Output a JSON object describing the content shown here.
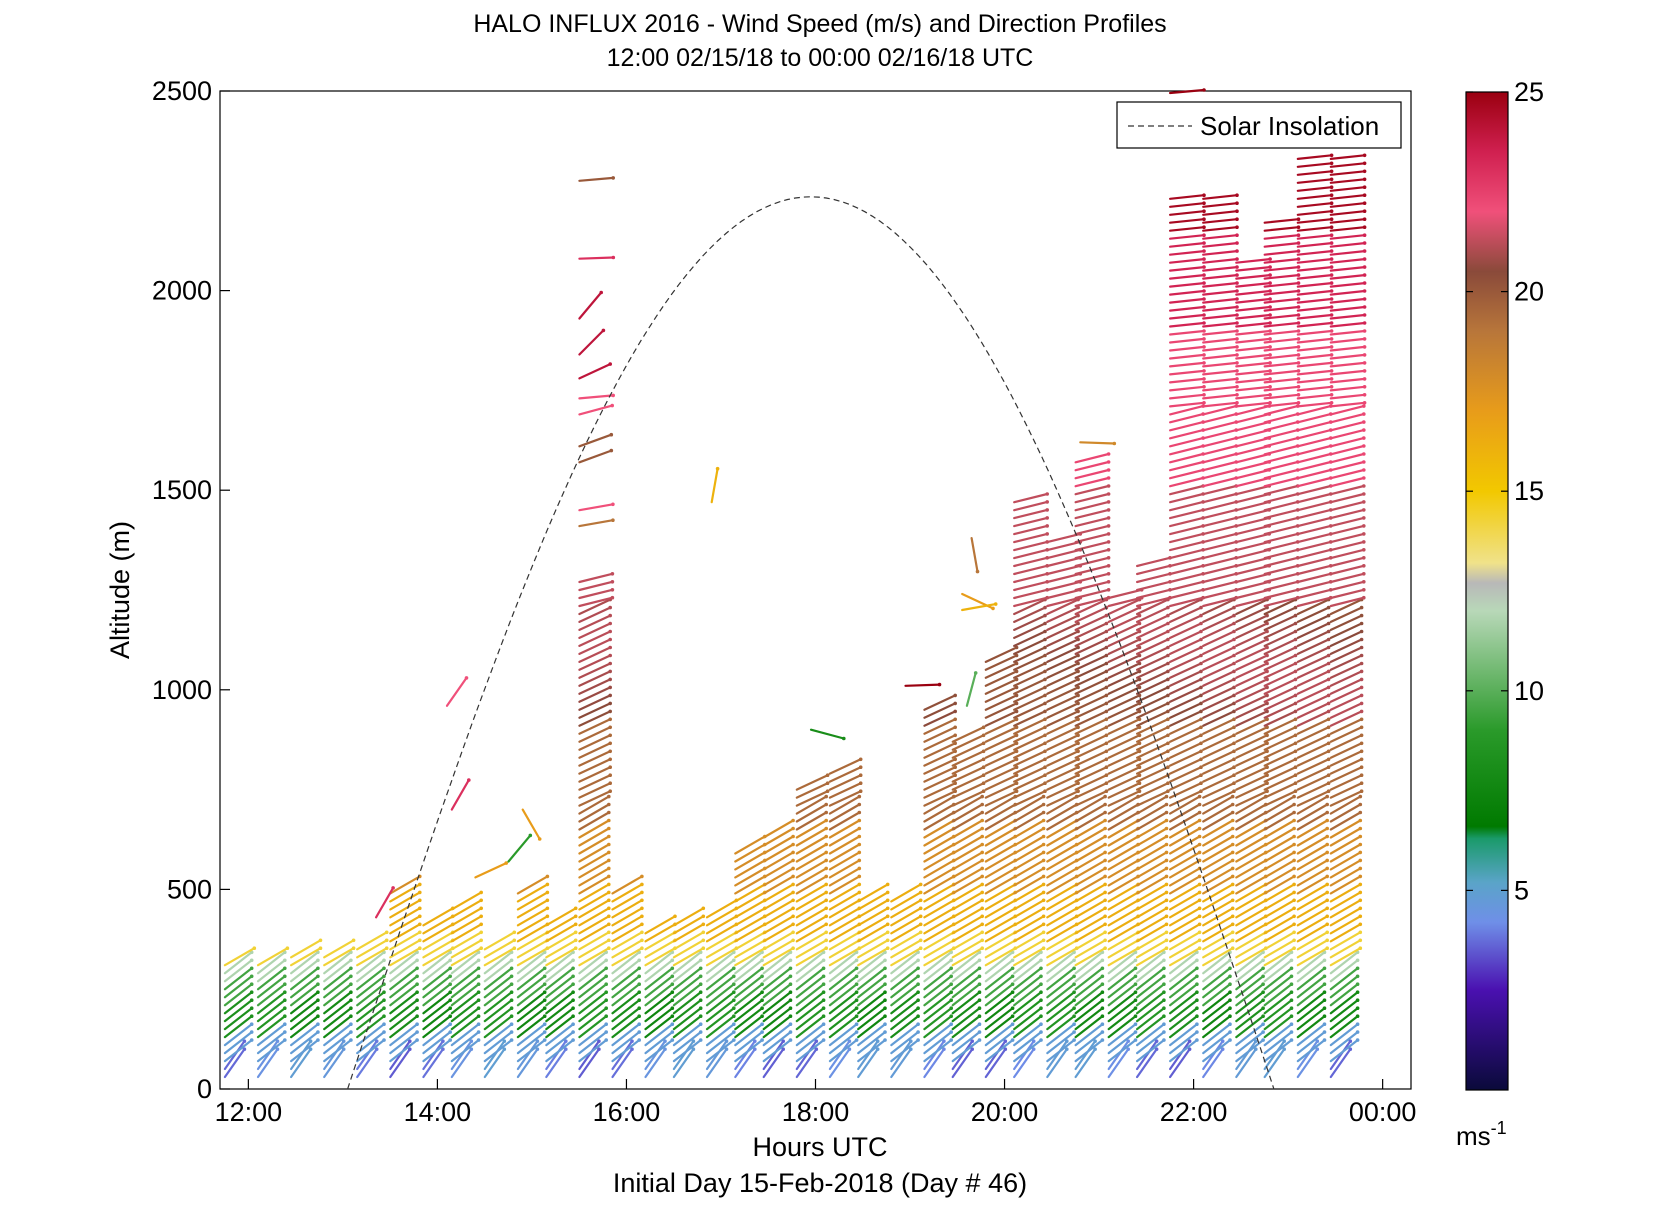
{
  "chart_data": {
    "type": "wind-barb-profile",
    "title": "HALO INFLUX 2016 - Wind Speed (m/s) and Direction Profiles",
    "subtitle": "12:00 02/15/18 to 00:00 02/16/18  UTC",
    "xlabel": "Hours UTC",
    "xlabel_secondary": "Initial Day 15-Feb-2018 (Day # 46)",
    "ylabel": "Altitude (m)",
    "xlim": [
      11.7,
      24.3
    ],
    "ylim": [
      0,
      2500
    ],
    "x_ticks": [
      {
        "value": 12,
        "label": "12:00"
      },
      {
        "value": 14,
        "label": "14:00"
      },
      {
        "value": 16,
        "label": "16:00"
      },
      {
        "value": 18,
        "label": "18:00"
      },
      {
        "value": 20,
        "label": "20:00"
      },
      {
        "value": 22,
        "label": "22:00"
      },
      {
        "value": 24,
        "label": "00:00"
      }
    ],
    "y_ticks": [
      {
        "value": 0,
        "label": "0"
      },
      {
        "value": 500,
        "label": "500"
      },
      {
        "value": 1000,
        "label": "1000"
      },
      {
        "value": 1500,
        "label": "1500"
      },
      {
        "value": 2000,
        "label": "2000"
      },
      {
        "value": 2500,
        "label": "2500"
      }
    ],
    "legend": {
      "label": "Solar Insolation",
      "position": "top-right",
      "line_style": "dashed",
      "color": "#000000"
    },
    "solar_insolation": {
      "start_hour": 13.05,
      "peak_hour": 17.95,
      "end_hour": 22.85,
      "peak_altitude": 2235
    },
    "colorbar": {
      "ticks": [
        {
          "value": 5,
          "label": "5"
        },
        {
          "value": 10,
          "label": "10"
        },
        {
          "value": 15,
          "label": "15"
        },
        {
          "value": 20,
          "label": "20"
        },
        {
          "value": 25,
          "label": "25"
        }
      ],
      "unit_base": "ms",
      "unit_exp": "-1",
      "range": [
        0,
        25
      ],
      "stops": [
        {
          "v": 0,
          "c": "#0a0a3a"
        },
        {
          "v": 2.5,
          "c": "#4a10b0"
        },
        {
          "v": 4.2,
          "c": "#6f8fe8"
        },
        {
          "v": 5.2,
          "c": "#5aa4c8"
        },
        {
          "v": 6.3,
          "c": "#1a9a6a"
        },
        {
          "v": 6.6,
          "c": "#007a00"
        },
        {
          "v": 9,
          "c": "#2a9a2a"
        },
        {
          "v": 12,
          "c": "#b8d8b8"
        },
        {
          "v": 12.7,
          "c": "#b8b8b8"
        },
        {
          "v": 13.2,
          "c": "#f0e28a"
        },
        {
          "v": 15,
          "c": "#f2c800"
        },
        {
          "v": 17,
          "c": "#e89c1a"
        },
        {
          "v": 19,
          "c": "#b8763a"
        },
        {
          "v": 20.5,
          "c": "#8a4a3a"
        },
        {
          "v": 22,
          "c": "#f0507a"
        },
        {
          "v": 23.5,
          "c": "#d02050"
        },
        {
          "v": 25,
          "c": "#9a0010"
        }
      ]
    },
    "profiles": [
      {
        "hour": 11.9,
        "z0": 30,
        "z1": 320
      },
      {
        "hour": 12.25,
        "z0": 30,
        "z1": 310
      },
      {
        "hour": 12.6,
        "z0": 30,
        "z1": 330
      },
      {
        "hour": 12.95,
        "z0": 30,
        "z1": 330
      },
      {
        "hour": 13.3,
        "z0": 30,
        "z1": 350
      },
      {
        "hour": 13.65,
        "z0": 30,
        "z1": 490
      },
      {
        "hour": 14.0,
        "z0": 30,
        "z1": 420
      },
      {
        "hour": 14.3,
        "z0": 30,
        "z1": 460
      },
      {
        "hour": 14.65,
        "z0": 30,
        "z1": 350
      },
      {
        "hour": 15.0,
        "z0": 30,
        "z1": 490
      },
      {
        "hour": 15.3,
        "z0": 30,
        "z1": 420
      },
      {
        "hour": 15.65,
        "z0": 30,
        "z1": 1280
      },
      {
        "hour": 16.0,
        "z0": 30,
        "z1": 490
      },
      {
        "hour": 16.35,
        "z0": 30,
        "z1": 400
      },
      {
        "hour": 16.65,
        "z0": 30,
        "z1": 420
      },
      {
        "hour": 17.0,
        "z0": 30,
        "z1": 440
      },
      {
        "hour": 17.3,
        "z0": 30,
        "z1": 600
      },
      {
        "hour": 17.6,
        "z0": 30,
        "z1": 640
      },
      {
        "hour": 17.95,
        "z0": 30,
        "z1": 760
      },
      {
        "hour": 18.3,
        "z0": 30,
        "z1": 800
      },
      {
        "hour": 18.6,
        "z0": 30,
        "z1": 480
      },
      {
        "hour": 18.95,
        "z0": 30,
        "z1": 480
      },
      {
        "hour": 19.3,
        "z0": 30,
        "z1": 950
      },
      {
        "hour": 19.6,
        "z0": 30,
        "z1": 880
      },
      {
        "hour": 19.95,
        "z0": 30,
        "z1": 1080
      },
      {
        "hour": 20.25,
        "z0": 30,
        "z1": 1480
      },
      {
        "hour": 20.6,
        "z0": 30,
        "z1": 1380
      },
      {
        "hour": 20.9,
        "z0": 30,
        "z1": 1580
      },
      {
        "hour": 21.25,
        "z0": 30,
        "z1": 1240
      },
      {
        "hour": 21.55,
        "z0": 30,
        "z1": 1310
      },
      {
        "hour": 21.9,
        "z0": 30,
        "z1": 2230
      },
      {
        "hour": 22.25,
        "z0": 30,
        "z1": 2230
      },
      {
        "hour": 22.6,
        "z0": 30,
        "z1": 2080
      },
      {
        "hour": 22.9,
        "z0": 30,
        "z1": 2170
      },
      {
        "hour": 23.25,
        "z0": 30,
        "z1": 2330
      },
      {
        "hour": 23.6,
        "z0": 30,
        "z1": 2330
      }
    ],
    "isolated_vectors": [
      {
        "hour": 13.5,
        "z": 430,
        "speed": 23,
        "angle": 60
      },
      {
        "hour": 14.25,
        "z": 960,
        "speed": 22,
        "angle": 55
      },
      {
        "hour": 14.3,
        "z": 700,
        "speed": 23,
        "angle": 60
      },
      {
        "hour": 14.55,
        "z": 530,
        "speed": 17,
        "angle": 25
      },
      {
        "hour": 14.9,
        "z": 570,
        "speed": 9,
        "angle": 50
      },
      {
        "hour": 15.05,
        "z": 700,
        "speed": 17,
        "angle": -60
      },
      {
        "hour": 17.05,
        "z": 1470,
        "speed": 16,
        "angle": 80
      },
      {
        "hour": 18.1,
        "z": 900,
        "speed": 8,
        "angle": -15
      },
      {
        "hour": 19.1,
        "z": 1010,
        "speed": 25,
        "angle": 2
      },
      {
        "hour": 19.7,
        "z": 1240,
        "speed": 17,
        "angle": -25
      },
      {
        "hour": 19.7,
        "z": 1200,
        "speed": 16,
        "angle": 10
      },
      {
        "hour": 19.75,
        "z": 960,
        "speed": 10,
        "angle": 75
      },
      {
        "hour": 19.8,
        "z": 1380,
        "speed": 19,
        "angle": -80
      },
      {
        "hour": 20.95,
        "z": 1620,
        "speed": 18,
        "angle": -2
      },
      {
        "hour": 21.9,
        "z": 2495,
        "speed": 25,
        "angle": 5
      },
      {
        "hour": 15.65,
        "z": 2275,
        "speed": 20,
        "angle": 5
      },
      {
        "hour": 15.65,
        "z": 2080,
        "speed": 23,
        "angle": 2
      },
      {
        "hour": 15.65,
        "z": 1930,
        "speed": 24,
        "angle": 50
      },
      {
        "hour": 15.65,
        "z": 1840,
        "speed": 24,
        "angle": 45
      },
      {
        "hour": 15.65,
        "z": 1780,
        "speed": 24,
        "angle": 25
      },
      {
        "hour": 15.65,
        "z": 1730,
        "speed": 22,
        "angle": 5
      },
      {
        "hour": 15.65,
        "z": 1690,
        "speed": 22,
        "angle": 15
      },
      {
        "hour": 15.65,
        "z": 1610,
        "speed": 20,
        "angle": 20
      },
      {
        "hour": 15.65,
        "z": 1570,
        "speed": 20,
        "angle": 20
      },
      {
        "hour": 15.65,
        "z": 1450,
        "speed": 22,
        "angle": 10
      },
      {
        "hour": 15.65,
        "z": 1410,
        "speed": 19,
        "angle": 10
      }
    ]
  }
}
